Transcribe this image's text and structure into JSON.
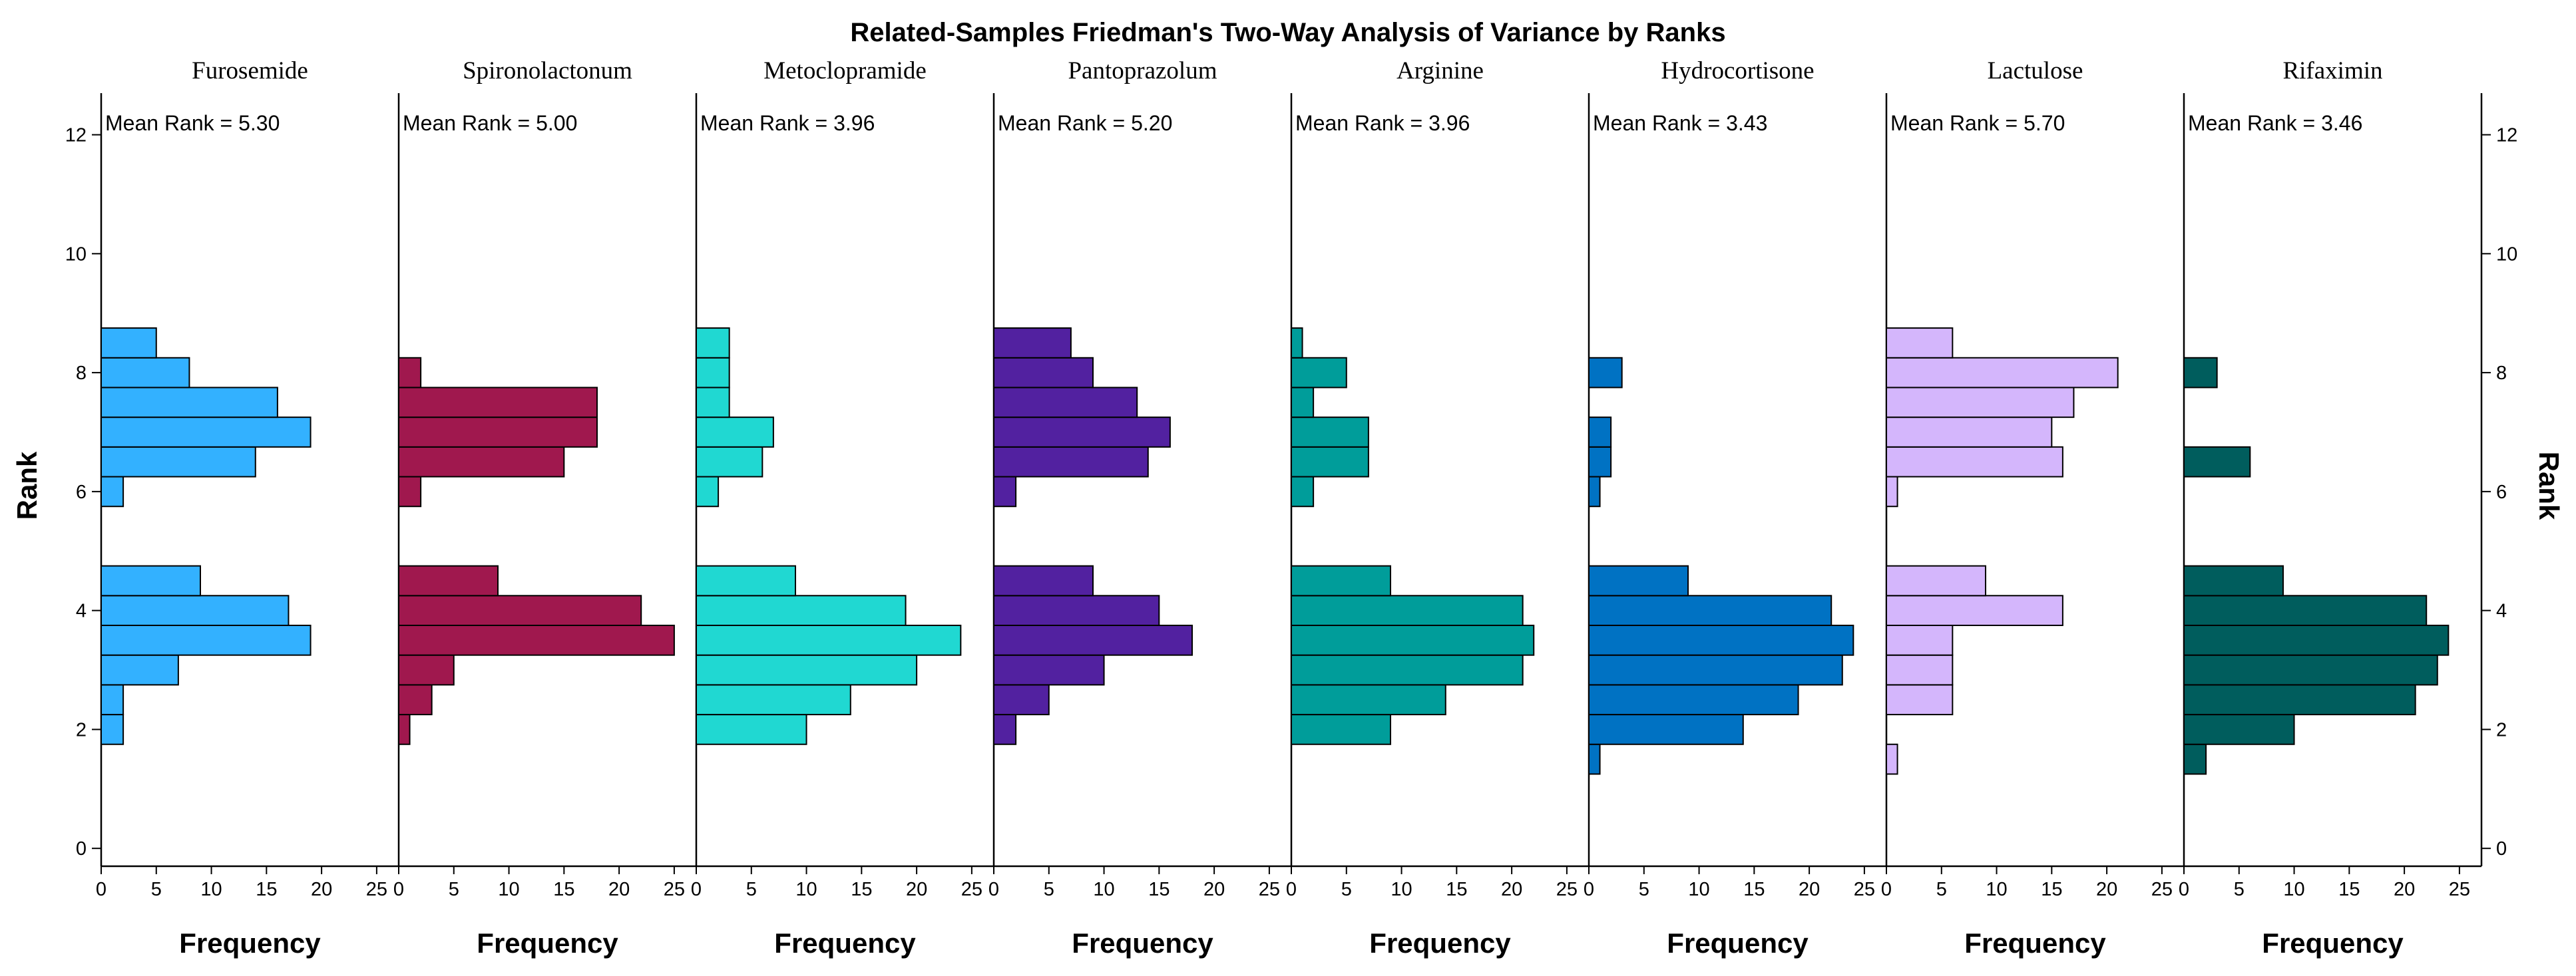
{
  "chart_data": {
    "type": "bar",
    "orientation": "horizontal",
    "title": "Related-Samples Friedman's Two-Way Analysis of Variance by Ranks",
    "xlabel": "Frequency",
    "ylabel": "Rank",
    "mean_rank_prefix": "Mean Rank = ",
    "y_ticks": [
      0,
      2,
      4,
      6,
      8,
      10,
      12
    ],
    "x_ticks": [
      0,
      5,
      10,
      15,
      20,
      25
    ],
    "ylim": [
      -0.3,
      12.7
    ],
    "xlim": [
      0,
      27
    ],
    "panels": [
      {
        "name": "Furosemide",
        "mean_rank": "5.30",
        "color": "#33b1ff",
        "bins": [
          {
            "rank_from": 1.75,
            "rank_to": 2.25,
            "frequency": 2
          },
          {
            "rank_from": 2.25,
            "rank_to": 2.75,
            "frequency": 2
          },
          {
            "rank_from": 2.75,
            "rank_to": 3.25,
            "frequency": 7
          },
          {
            "rank_from": 3.25,
            "rank_to": 3.75,
            "frequency": 19
          },
          {
            "rank_from": 3.75,
            "rank_to": 4.25,
            "frequency": 17
          },
          {
            "rank_from": 4.25,
            "rank_to": 4.75,
            "frequency": 9
          },
          {
            "rank_from": 5.75,
            "rank_to": 6.25,
            "frequency": 2
          },
          {
            "rank_from": 6.25,
            "rank_to": 6.75,
            "frequency": 14
          },
          {
            "rank_from": 6.75,
            "rank_to": 7.25,
            "frequency": 19
          },
          {
            "rank_from": 7.25,
            "rank_to": 7.75,
            "frequency": 16
          },
          {
            "rank_from": 7.75,
            "rank_to": 8.25,
            "frequency": 8
          },
          {
            "rank_from": 8.25,
            "rank_to": 8.75,
            "frequency": 5
          }
        ]
      },
      {
        "name": "Spironolactonum",
        "mean_rank": "5.00",
        "color": "#a0184e",
        "bins": [
          {
            "rank_from": 1.75,
            "rank_to": 2.25,
            "frequency": 1
          },
          {
            "rank_from": 2.25,
            "rank_to": 2.75,
            "frequency": 3
          },
          {
            "rank_from": 2.75,
            "rank_to": 3.25,
            "frequency": 5
          },
          {
            "rank_from": 3.25,
            "rank_to": 3.75,
            "frequency": 25
          },
          {
            "rank_from": 3.75,
            "rank_to": 4.25,
            "frequency": 22
          },
          {
            "rank_from": 4.25,
            "rank_to": 4.75,
            "frequency": 9
          },
          {
            "rank_from": 5.75,
            "rank_to": 6.25,
            "frequency": 2
          },
          {
            "rank_from": 6.25,
            "rank_to": 6.75,
            "frequency": 15
          },
          {
            "rank_from": 6.75,
            "rank_to": 7.25,
            "frequency": 18
          },
          {
            "rank_from": 7.25,
            "rank_to": 7.75,
            "frequency": 18
          },
          {
            "rank_from": 7.75,
            "rank_to": 8.25,
            "frequency": 2
          }
        ]
      },
      {
        "name": "Metoclopramide",
        "mean_rank": "3.96",
        "color": "#20d8d2",
        "bins": [
          {
            "rank_from": 1.75,
            "rank_to": 2.25,
            "frequency": 10
          },
          {
            "rank_from": 2.25,
            "rank_to": 2.75,
            "frequency": 14
          },
          {
            "rank_from": 2.75,
            "rank_to": 3.25,
            "frequency": 20
          },
          {
            "rank_from": 3.25,
            "rank_to": 3.75,
            "frequency": 24
          },
          {
            "rank_from": 3.75,
            "rank_to": 4.25,
            "frequency": 19
          },
          {
            "rank_from": 4.25,
            "rank_to": 4.75,
            "frequency": 9
          },
          {
            "rank_from": 5.75,
            "rank_to": 6.25,
            "frequency": 2
          },
          {
            "rank_from": 6.25,
            "rank_to": 6.75,
            "frequency": 6
          },
          {
            "rank_from": 6.75,
            "rank_to": 7.25,
            "frequency": 7
          },
          {
            "rank_from": 7.25,
            "rank_to": 7.75,
            "frequency": 3
          },
          {
            "rank_from": 7.75,
            "rank_to": 8.25,
            "frequency": 3
          },
          {
            "rank_from": 8.25,
            "rank_to": 8.75,
            "frequency": 3
          }
        ]
      },
      {
        "name": "Pantoprazolum",
        "mean_rank": "5.20",
        "color": "#5221a0",
        "bins": [
          {
            "rank_from": 1.75,
            "rank_to": 2.25,
            "frequency": 2
          },
          {
            "rank_from": 2.25,
            "rank_to": 2.75,
            "frequency": 5
          },
          {
            "rank_from": 2.75,
            "rank_to": 3.25,
            "frequency": 10
          },
          {
            "rank_from": 3.25,
            "rank_to": 3.75,
            "frequency": 18
          },
          {
            "rank_from": 3.75,
            "rank_to": 4.25,
            "frequency": 15
          },
          {
            "rank_from": 4.25,
            "rank_to": 4.75,
            "frequency": 9
          },
          {
            "rank_from": 5.75,
            "rank_to": 6.25,
            "frequency": 2
          },
          {
            "rank_from": 6.25,
            "rank_to": 6.75,
            "frequency": 14
          },
          {
            "rank_from": 6.75,
            "rank_to": 7.25,
            "frequency": 16
          },
          {
            "rank_from": 7.25,
            "rank_to": 7.75,
            "frequency": 13
          },
          {
            "rank_from": 7.75,
            "rank_to": 8.25,
            "frequency": 9
          },
          {
            "rank_from": 8.25,
            "rank_to": 8.75,
            "frequency": 7
          }
        ]
      },
      {
        "name": "Arginine",
        "mean_rank": "3.96",
        "color": "#009d9a",
        "bins": [
          {
            "rank_from": 1.75,
            "rank_to": 2.25,
            "frequency": 9
          },
          {
            "rank_from": 2.25,
            "rank_to": 2.75,
            "frequency": 14
          },
          {
            "rank_from": 2.75,
            "rank_to": 3.25,
            "frequency": 21
          },
          {
            "rank_from": 3.25,
            "rank_to": 3.75,
            "frequency": 22
          },
          {
            "rank_from": 3.75,
            "rank_to": 4.25,
            "frequency": 21
          },
          {
            "rank_from": 4.25,
            "rank_to": 4.75,
            "frequency": 9
          },
          {
            "rank_from": 5.75,
            "rank_to": 6.25,
            "frequency": 2
          },
          {
            "rank_from": 6.25,
            "rank_to": 6.75,
            "frequency": 7
          },
          {
            "rank_from": 6.75,
            "rank_to": 7.25,
            "frequency": 7
          },
          {
            "rank_from": 7.25,
            "rank_to": 7.75,
            "frequency": 2
          },
          {
            "rank_from": 7.75,
            "rank_to": 8.25,
            "frequency": 5
          },
          {
            "rank_from": 8.25,
            "rank_to": 8.75,
            "frequency": 1
          }
        ]
      },
      {
        "name": "Hydrocortisone",
        "mean_rank": "3.43",
        "color": "#0072c3",
        "bins": [
          {
            "rank_from": 1.25,
            "rank_to": 1.75,
            "frequency": 1
          },
          {
            "rank_from": 1.75,
            "rank_to": 2.25,
            "frequency": 14
          },
          {
            "rank_from": 2.25,
            "rank_to": 2.75,
            "frequency": 19
          },
          {
            "rank_from": 2.75,
            "rank_to": 3.25,
            "frequency": 23
          },
          {
            "rank_from": 3.25,
            "rank_to": 3.75,
            "frequency": 24
          },
          {
            "rank_from": 3.75,
            "rank_to": 4.25,
            "frequency": 22
          },
          {
            "rank_from": 4.25,
            "rank_to": 4.75,
            "frequency": 9
          },
          {
            "rank_from": 5.75,
            "rank_to": 6.25,
            "frequency": 1
          },
          {
            "rank_from": 6.25,
            "rank_to": 6.75,
            "frequency": 2
          },
          {
            "rank_from": 6.75,
            "rank_to": 7.25,
            "frequency": 2
          },
          {
            "rank_from": 7.75,
            "rank_to": 8.25,
            "frequency": 3
          }
        ]
      },
      {
        "name": "Lactulose",
        "mean_rank": "5.70",
        "color": "#d4b6fc",
        "bins": [
          {
            "rank_from": 1.25,
            "rank_to": 1.75,
            "frequency": 1
          },
          {
            "rank_from": 2.25,
            "rank_to": 2.75,
            "frequency": 6
          },
          {
            "rank_from": 2.75,
            "rank_to": 3.25,
            "frequency": 6
          },
          {
            "rank_from": 3.25,
            "rank_to": 3.75,
            "frequency": 6
          },
          {
            "rank_from": 3.75,
            "rank_to": 4.25,
            "frequency": 16
          },
          {
            "rank_from": 4.25,
            "rank_to": 4.75,
            "frequency": 9
          },
          {
            "rank_from": 5.75,
            "rank_to": 6.25,
            "frequency": 1
          },
          {
            "rank_from": 6.25,
            "rank_to": 6.75,
            "frequency": 16
          },
          {
            "rank_from": 6.75,
            "rank_to": 7.25,
            "frequency": 15
          },
          {
            "rank_from": 7.25,
            "rank_to": 7.75,
            "frequency": 17
          },
          {
            "rank_from": 7.75,
            "rank_to": 8.25,
            "frequency": 21
          },
          {
            "rank_from": 8.25,
            "rank_to": 8.75,
            "frequency": 6
          }
        ]
      },
      {
        "name": "Rifaximin",
        "mean_rank": "3.46",
        "color": "#005d5d",
        "bins": [
          {
            "rank_from": 1.25,
            "rank_to": 1.75,
            "frequency": 2
          },
          {
            "rank_from": 1.75,
            "rank_to": 2.25,
            "frequency": 10
          },
          {
            "rank_from": 2.25,
            "rank_to": 2.75,
            "frequency": 21
          },
          {
            "rank_from": 2.75,
            "rank_to": 3.25,
            "frequency": 23
          },
          {
            "rank_from": 3.25,
            "rank_to": 3.75,
            "frequency": 24
          },
          {
            "rank_from": 3.75,
            "rank_to": 4.25,
            "frequency": 22
          },
          {
            "rank_from": 4.25,
            "rank_to": 4.75,
            "frequency": 9
          },
          {
            "rank_from": 6.25,
            "rank_to": 6.75,
            "frequency": 6
          },
          {
            "rank_from": 7.75,
            "rank_to": 8.25,
            "frequency": 3
          }
        ]
      }
    ]
  }
}
